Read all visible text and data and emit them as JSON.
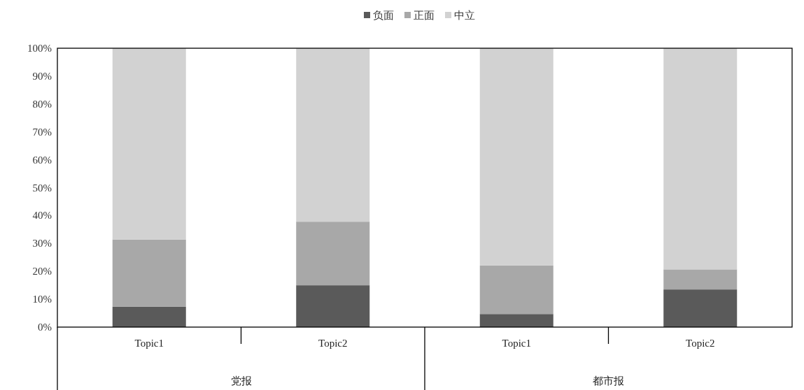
{
  "chart_data": {
    "type": "bar",
    "stacked": true,
    "categories": [
      "Topic1",
      "Topic2",
      "Topic1",
      "Topic2"
    ],
    "series": [
      {
        "name": "负面",
        "color": "#5a5a5a",
        "values": [
          7.3,
          15.0,
          4.7,
          13.5
        ]
      },
      {
        "name": "正面",
        "color": "#a8a8a8",
        "values": [
          24.1,
          22.8,
          17.4,
          7.2
        ]
      },
      {
        "name": "中立",
        "color": "#d2d2d2",
        "values": [
          68.6,
          62.2,
          77.9,
          79.3
        ]
      }
    ],
    "ylim": [
      0,
      100
    ],
    "yticks": [
      {
        "value": 0,
        "label": "0%"
      },
      {
        "value": 10,
        "label": "10%"
      },
      {
        "value": 20,
        "label": "20%"
      },
      {
        "value": 30,
        "label": "30%"
      },
      {
        "value": 40,
        "label": "40%"
      },
      {
        "value": 50,
        "label": "50%"
      },
      {
        "value": 60,
        "label": "60%"
      },
      {
        "value": 70,
        "label": "70%"
      },
      {
        "value": 80,
        "label": "80%"
      },
      {
        "value": 90,
        "label": "90%"
      },
      {
        "value": 100,
        "label": "100%"
      }
    ],
    "annotations": [
      "党报",
      "都市报"
    ],
    "legend": "top"
  }
}
